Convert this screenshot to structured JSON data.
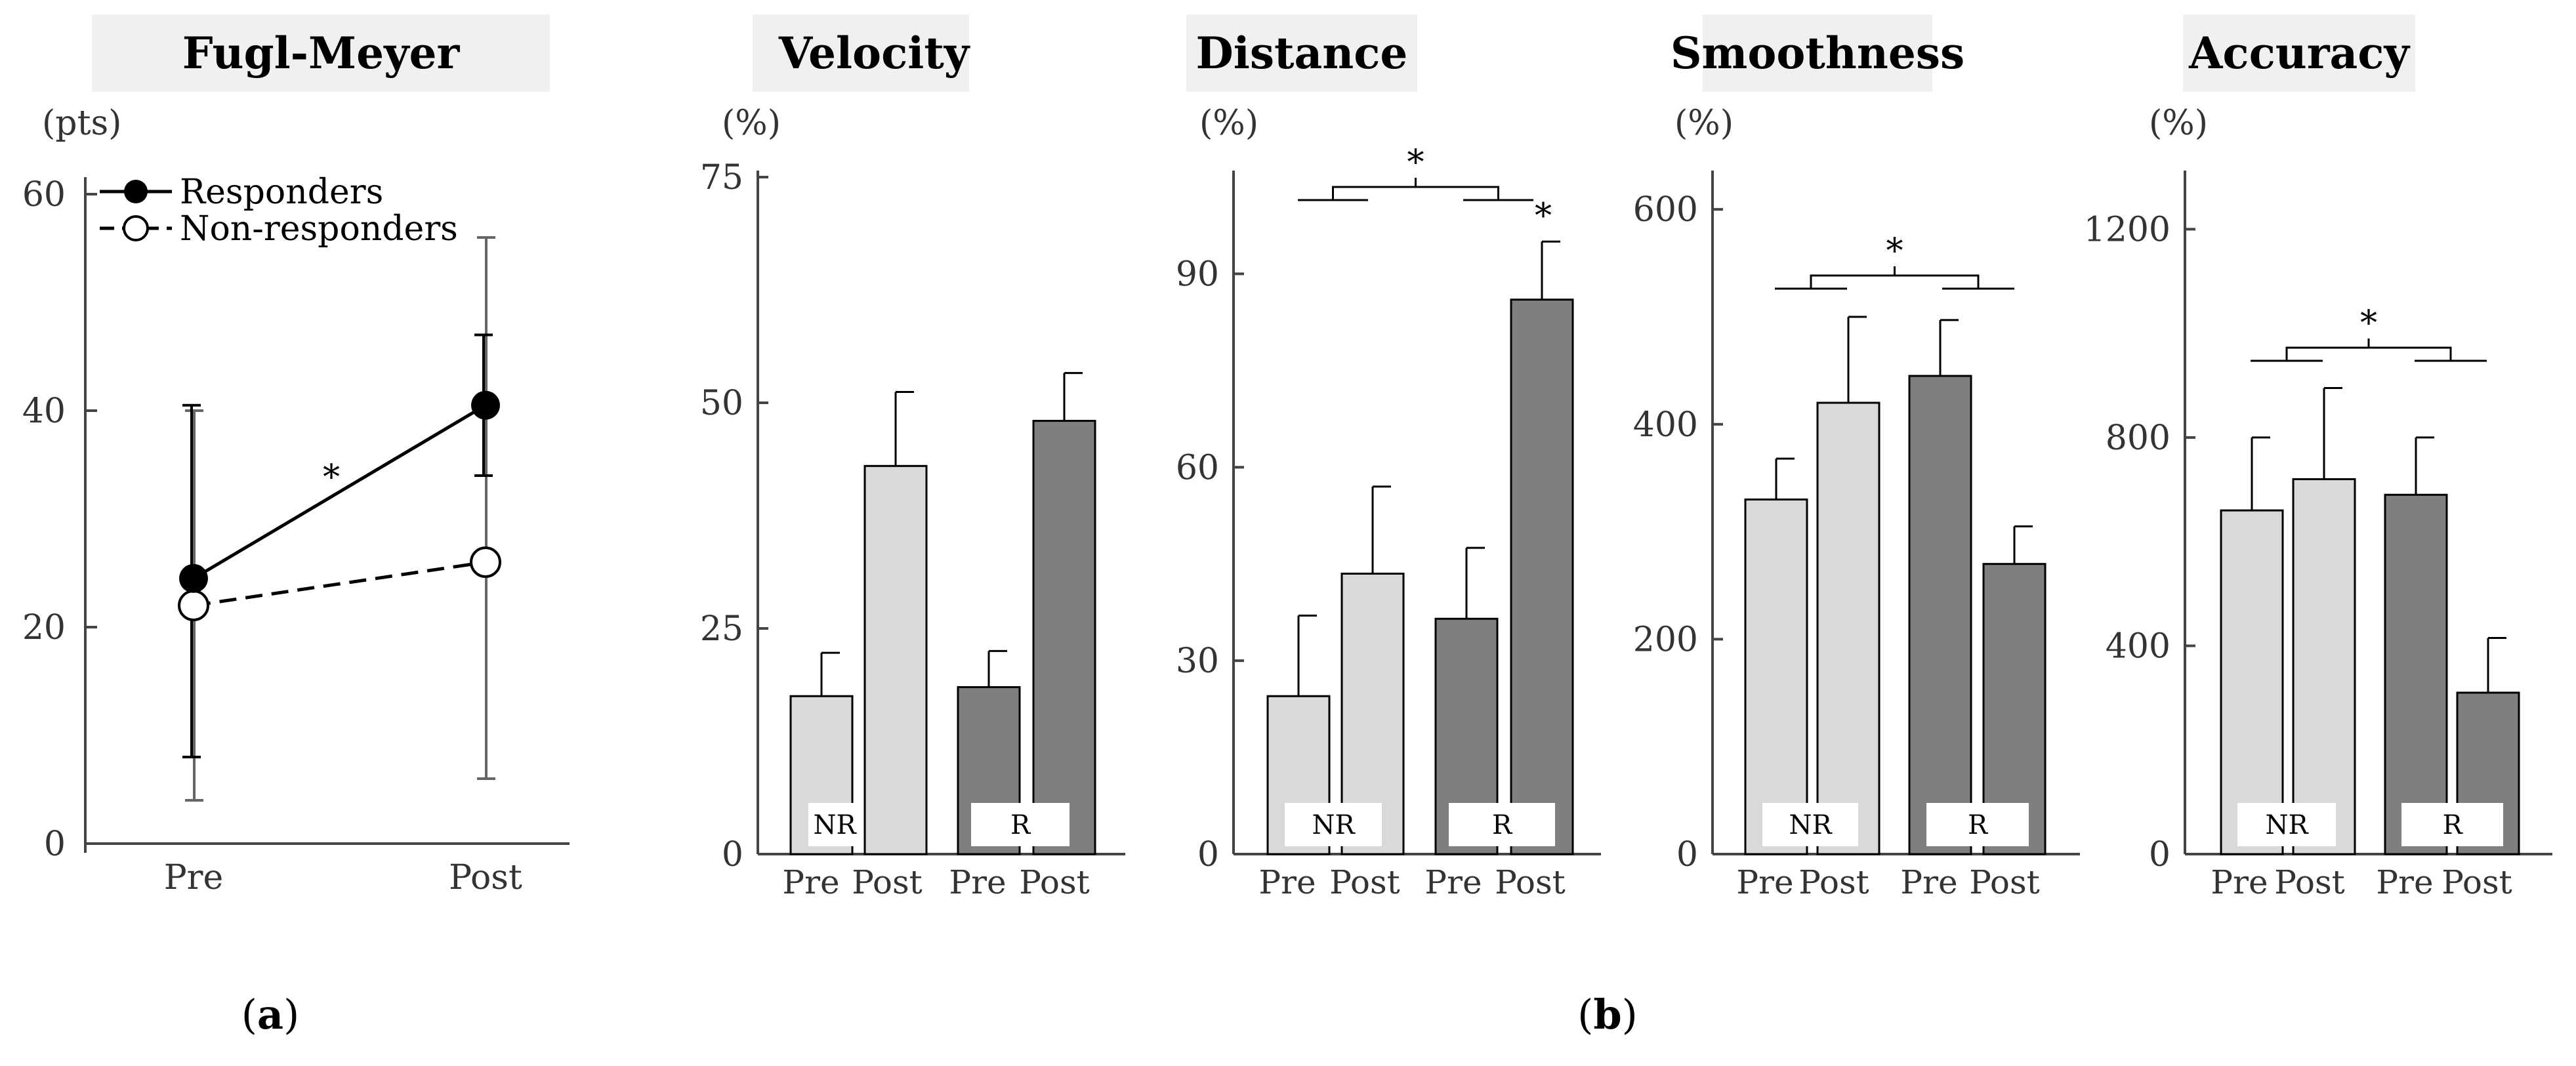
{
  "panel_a": {
    "title": "Fugl-Meyer",
    "unit": "(pts)",
    "caption_letter": "a",
    "legend": {
      "responders": "Responders",
      "non_responders": "Non-responders"
    },
    "significance": "*"
  },
  "panel_b": {
    "caption_letter": "b"
  },
  "chart_data": [
    {
      "type": "line",
      "title": "Fugl-Meyer",
      "ylabel": "(pts)",
      "categories": [
        "Pre",
        "Post"
      ],
      "ylim": [
        0,
        60
      ],
      "yticks": [
        "0",
        "20",
        "40",
        "60"
      ],
      "series": [
        {
          "name": "Responders",
          "values": [
            24.5,
            40.5
          ],
          "err_upper": [
            40.5,
            47
          ],
          "err_lower": [
            8,
            34
          ]
        },
        {
          "name": "Non-responders",
          "values": [
            22,
            26
          ],
          "err_upper": [
            40,
            56
          ],
          "err_lower": [
            4,
            6
          ]
        }
      ],
      "significance": "*"
    },
    {
      "type": "bar",
      "title": "Velocity",
      "ylabel": "(%)",
      "ylim": [
        0,
        75
      ],
      "yticks": [
        "0",
        "25",
        "50",
        "75"
      ],
      "groups": [
        "NR",
        "R"
      ],
      "categories": [
        "Pre",
        "Post"
      ],
      "series": [
        {
          "name": "NR",
          "values": [
            17.5,
            43
          ],
          "errors": [
            4.8,
            8.2
          ]
        },
        {
          "name": "R",
          "values": [
            18.5,
            48
          ],
          "errors": [
            4.0,
            5.3
          ]
        }
      ]
    },
    {
      "type": "bar",
      "title": "Distance",
      "ylabel": "(%)",
      "ylim": [
        0,
        105
      ],
      "yticks": [
        "0",
        "30",
        "60",
        "90"
      ],
      "groups": [
        "NR",
        "R"
      ],
      "categories": [
        "Pre",
        "Post"
      ],
      "series": [
        {
          "name": "NR",
          "values": [
            24.5,
            43.5
          ],
          "errors": [
            12.5,
            13.5
          ]
        },
        {
          "name": "R",
          "values": [
            36.5,
            86
          ],
          "errors": [
            11,
            9
          ]
        }
      ],
      "significance": [
        "*",
        "*"
      ]
    },
    {
      "type": "bar",
      "title": "Smoothness",
      "ylabel": "(%)",
      "ylim": [
        0,
        630
      ],
      "yticks": [
        "0",
        "200",
        "400",
        "600"
      ],
      "groups": [
        "NR",
        "R"
      ],
      "categories": [
        "Pre",
        "Post"
      ],
      "series": [
        {
          "name": "NR",
          "values": [
            330,
            420
          ],
          "errors": [
            38,
            80
          ]
        },
        {
          "name": "R",
          "values": [
            445,
            270
          ],
          "errors": [
            52,
            35
          ]
        }
      ],
      "significance": [
        "*"
      ]
    },
    {
      "type": "bar",
      "title": "Accuracy",
      "ylabel": "(%)",
      "ylim": [
        0,
        1300
      ],
      "yticks": [
        "0",
        "400",
        "800",
        "1200"
      ],
      "groups": [
        "NR",
        "R"
      ],
      "categories": [
        "Pre",
        "Post"
      ],
      "series": [
        {
          "name": "NR",
          "values": [
            660,
            720
          ],
          "errors": [
            140,
            175
          ]
        },
        {
          "name": "R",
          "values": [
            690,
            310
          ],
          "errors": [
            110,
            105
          ]
        }
      ],
      "significance": [
        "*"
      ]
    }
  ],
  "colors": {
    "nr_fill": "#d9d9d9",
    "r_fill": "#7f7f7f",
    "title_bg": "#f0f0f0",
    "line_dark": "#000000",
    "axis": "#444444",
    "tick_text": "#333333",
    "err_gray": "#666666"
  }
}
